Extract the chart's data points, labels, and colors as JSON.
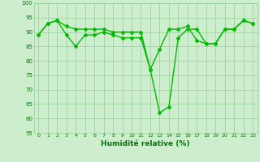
{
  "line1": {
    "x": [
      0,
      1,
      2,
      3,
      4,
      5,
      6,
      7,
      8,
      9,
      10,
      11,
      12,
      13,
      14,
      15,
      16,
      17,
      18,
      19,
      20,
      21,
      22,
      23
    ],
    "y": [
      89,
      93,
      94,
      89,
      85,
      89,
      89,
      90,
      89,
      88,
      88,
      88,
      77,
      84,
      91,
      91,
      92,
      87,
      86,
      86,
      91,
      91,
      94,
      93
    ]
  },
  "line2": {
    "x": [
      0,
      1,
      2,
      3,
      4,
      5,
      6,
      7,
      8,
      9,
      10,
      11,
      12,
      13,
      14,
      15,
      16,
      17,
      18,
      19,
      20,
      21,
      22,
      23
    ],
    "y": [
      89,
      93,
      94,
      92,
      91,
      91,
      91,
      91,
      90,
      90,
      90,
      90,
      77,
      62,
      64,
      88,
      91,
      91,
      86,
      86,
      91,
      91,
      94,
      93
    ]
  },
  "line_color": "#00bb00",
  "bg_color": "#cceecc",
  "grid_color": "#99cc99",
  "xlabel": "Humidité relative (%)",
  "ylim": [
    55,
    100
  ],
  "xlim": [
    -0.5,
    23.5
  ],
  "yticks": [
    55,
    60,
    65,
    70,
    75,
    80,
    85,
    90,
    95,
    100
  ],
  "xticks": [
    0,
    1,
    2,
    3,
    4,
    5,
    6,
    7,
    8,
    9,
    10,
    11,
    12,
    13,
    14,
    15,
    16,
    17,
    18,
    19,
    20,
    21,
    22,
    23
  ],
  "xlabel_color": "#007700",
  "line_width": 1.0,
  "marker": "D",
  "marker_size": 2.0
}
